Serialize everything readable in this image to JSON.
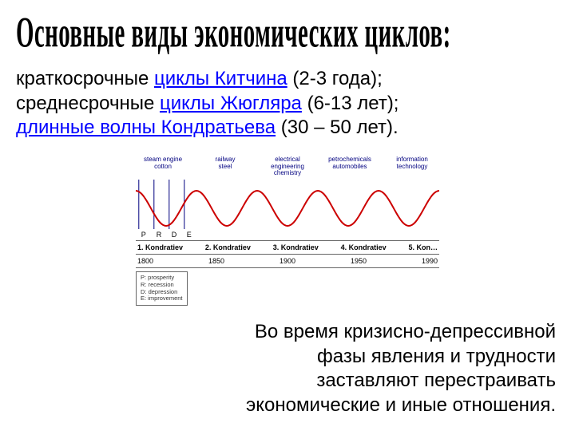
{
  "title": "Основные виды экономических циклов:",
  "bullets": {
    "l1a": "краткосрочные ",
    "l1b": "циклы Китчина",
    "l1c": " (2-3 года);",
    "l2a": "среднесрочные ",
    "l2b": "циклы Жюгляра",
    "l2c": " (6-13 лет);",
    "l3a": "длинные волны Кондратьева",
    "l3b": " (30 – 50 лет)."
  },
  "chart": {
    "top_labels": [
      "steam engine\ncotton",
      "railway\nsteel",
      "electrical\nengineering\nchemistry",
      "petrochemicals\nautomobiles",
      "information\ntechnology"
    ],
    "wave_count": 5,
    "wave_color": "#cc0000",
    "wave_stroke": 2,
    "guide_color": "#000080",
    "guide_labels": [
      "P",
      "R",
      "D",
      "E"
    ],
    "period_labels": [
      "1. Kondratiev",
      "2. Kondratiev",
      "3. Kondratiev",
      "4. Kondratiev",
      "5. Kon…"
    ],
    "years": [
      "1800",
      "1850",
      "1900",
      "1950",
      "1990"
    ],
    "legend": [
      "P: prosperity",
      "R: recession",
      "D: depression",
      "E: improvement"
    ]
  },
  "bottom": {
    "l1": "Во время кризисно-депрессивной",
    "l2": "фазы явления и трудности",
    "l3": "заставляют перестраивать",
    "l4": "экономические и иные отношения."
  }
}
